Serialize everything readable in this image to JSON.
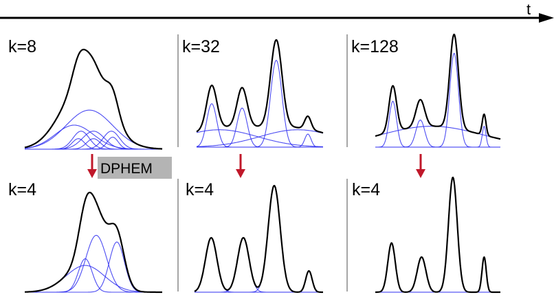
{
  "time_axis": {
    "label": "t"
  },
  "method": {
    "label": "DPHEM"
  },
  "colors": {
    "mixture": "#000000",
    "component": "#2b2bf0",
    "arrow": "#c0182a",
    "divider": "#888888",
    "badge": "#b4b4b4"
  },
  "panels": [
    {
      "id": "top-1",
      "label": "k=8",
      "components": [
        {
          "mu": 0.47,
          "sigma": 0.17,
          "w": 0.26
        },
        {
          "mu": 0.39,
          "sigma": 0.045,
          "w": 0.07
        },
        {
          "mu": 0.5,
          "sigma": 0.05,
          "w": 0.07
        },
        {
          "mu": 0.64,
          "sigma": 0.04,
          "w": 0.08
        },
        {
          "mu": 0.41,
          "sigma": 0.06,
          "w": 0.12
        },
        {
          "mu": 0.5,
          "sigma": 0.08,
          "w": 0.12
        },
        {
          "mu": 0.63,
          "sigma": 0.06,
          "w": 0.12
        },
        {
          "mu": 0.36,
          "sigma": 0.14,
          "w": 0.16
        }
      ]
    },
    {
      "id": "top-2",
      "label": "k=32",
      "components": [
        {
          "mu": 0.12,
          "sigma": 0.04,
          "w": 0.2
        },
        {
          "mu": 0.36,
          "sigma": 0.04,
          "w": 0.18
        },
        {
          "mu": 0.63,
          "sigma": 0.045,
          "w": 0.4
        },
        {
          "mu": 0.88,
          "sigma": 0.025,
          "w": 0.06
        },
        {
          "mu": 0.18,
          "sigma": 0.3,
          "w": 0.08
        },
        {
          "mu": 0.8,
          "sigma": 0.3,
          "w": 0.08
        }
      ]
    },
    {
      "id": "top-3",
      "label": "k=128",
      "components": [
        {
          "mu": 0.14,
          "sigma": 0.03,
          "w": 0.22
        },
        {
          "mu": 0.36,
          "sigma": 0.035,
          "w": 0.13
        },
        {
          "mu": 0.63,
          "sigma": 0.035,
          "w": 0.45
        },
        {
          "mu": 0.87,
          "sigma": 0.015,
          "w": 0.1
        },
        {
          "mu": 0.45,
          "sigma": 0.4,
          "w": 0.1
        }
      ]
    },
    {
      "id": "bottom-1",
      "label": "k=4",
      "components": [
        {
          "mu": 0.44,
          "sigma": 0.05,
          "w": 0.2
        },
        {
          "mu": 0.52,
          "sigma": 0.075,
          "w": 0.34
        },
        {
          "mu": 0.67,
          "sigma": 0.055,
          "w": 0.3
        },
        {
          "mu": 0.44,
          "sigma": 0.14,
          "w": 0.16
        }
      ]
    },
    {
      "id": "bottom-2",
      "label": "k=4",
      "components": [
        {
          "mu": 0.13,
          "sigma": 0.045,
          "w": 0.23
        },
        {
          "mu": 0.38,
          "sigma": 0.045,
          "w": 0.23
        },
        {
          "mu": 0.62,
          "sigma": 0.047,
          "w": 0.45
        },
        {
          "mu": 0.89,
          "sigma": 0.025,
          "w": 0.09
        }
      ]
    },
    {
      "id": "bottom-3",
      "label": "k=4",
      "components": [
        {
          "mu": 0.13,
          "sigma": 0.03,
          "w": 0.21
        },
        {
          "mu": 0.37,
          "sigma": 0.035,
          "w": 0.15
        },
        {
          "mu": 0.62,
          "sigma": 0.035,
          "w": 0.49
        },
        {
          "mu": 0.87,
          "sigma": 0.017,
          "w": 0.15
        }
      ]
    }
  ]
}
